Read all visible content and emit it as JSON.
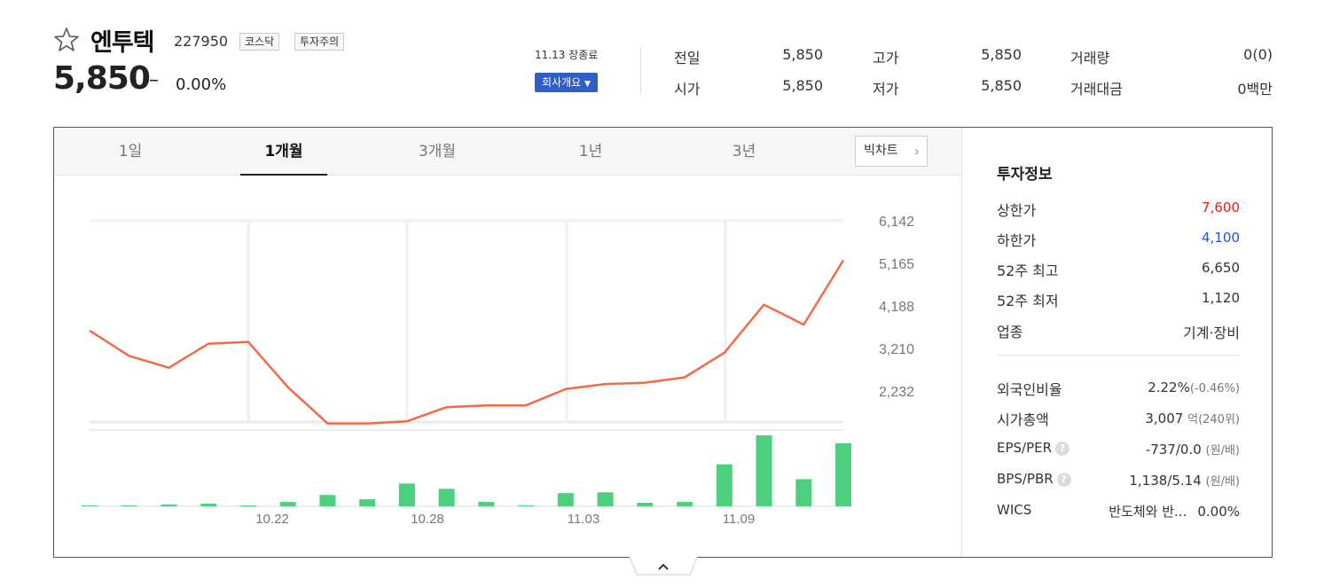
{
  "stock": {
    "name": "엔투텍",
    "code": "227950",
    "market_tag": "코스닥",
    "warning_tag": "투자주의",
    "price": "5,850",
    "change_symbol": "–",
    "change_rate": "0.00%"
  },
  "session": {
    "close_label": "11.13 장종료",
    "company_button": "회사개요"
  },
  "summary": [
    {
      "label": "전일",
      "value": "5,850"
    },
    {
      "label": "고가",
      "value": "5,850"
    },
    {
      "label": "거래량",
      "value": "0(0)"
    },
    {
      "label": "시가",
      "value": "5,850"
    },
    {
      "label": "저가",
      "value": "5,850"
    },
    {
      "label": "거래대금",
      "value": "0백만"
    }
  ],
  "tabs": [
    "1일",
    "1개월",
    "3개월",
    "1년",
    "3년"
  ],
  "active_tab": "1개월",
  "big_chart_button": "빅차트",
  "invest": {
    "title": "투자정보",
    "upper_limit_label": "상한가",
    "upper_limit": "7,600",
    "lower_limit_label": "하한가",
    "lower_limit": "4,100",
    "high52_label": "52주 최고",
    "high52": "6,650",
    "low52_label": "52주 최저",
    "low52": "1,120",
    "sector_label": "업종",
    "sector": "기계·장비",
    "foreign_label": "외국인비율",
    "foreign": "2.22%",
    "foreign_sub": "(-0.46%)",
    "mcap_label": "시가총액",
    "mcap": "3,007",
    "mcap_sub": "억(240위)",
    "eps_label": "EPS/PER",
    "eps": "-737/0.0",
    "eps_sub": "(원/배)",
    "bps_label": "BPS/PBR",
    "bps": "1,138/5.14",
    "bps_sub": "(원/배)",
    "wics_label": "WICS",
    "wics": "반도체와 반...",
    "wics_rate": "0.00%",
    "help_glyph": "?"
  },
  "colors": {
    "line": "#f46a45",
    "volume": "#4cd07d",
    "up": "#e02020",
    "down": "#2551c9",
    "button": "#2e5fc4"
  },
  "chart_data": {
    "type": "line",
    "y_ticks": [
      "6,142",
      "5,165",
      "4,188",
      "3,210",
      "2,232"
    ],
    "x_ticks": [
      "10.22",
      "10.28",
      "11.03",
      "11.09"
    ],
    "ylim": [
      2232,
      6142
    ],
    "price": [
      4250,
      3690,
      3430,
      3960,
      4000,
      3000,
      2200,
      2200,
      2250,
      2560,
      2600,
      2600,
      2960,
      3070,
      3100,
      3220,
      3760,
      4820,
      4380,
      5800
    ],
    "volume": [
      0.5,
      1,
      2,
      3,
      1,
      5,
      13,
      8,
      26,
      20,
      5,
      1,
      15,
      16,
      4,
      5,
      48,
      81,
      31,
      72
    ]
  }
}
